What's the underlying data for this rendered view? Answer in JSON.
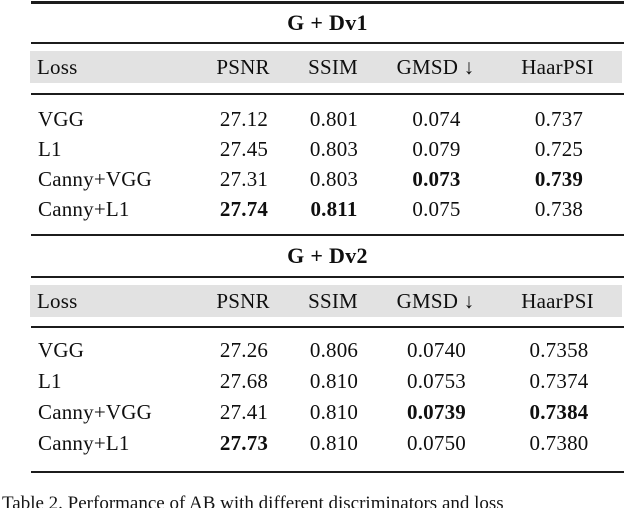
{
  "figure": {
    "type": "paper-results-table",
    "caption": "Table 2. Performance of AB with different discriminators and loss"
  },
  "colors": {
    "header_band": "#e2e2e2",
    "rule": "#1c1c1c",
    "text": "#0f0f0f",
    "background": "#ffffff"
  },
  "tables": [
    {
      "title": "G + Dv1",
      "headers": [
        "Loss",
        "PSNR",
        "SSIM",
        "GMSD ↓",
        "HaarPSI"
      ],
      "rows": [
        {
          "loss": "VGG",
          "psnr": "27.12",
          "ssim": "0.801",
          "gmsd": "0.074",
          "haarpsi": "0.737"
        },
        {
          "loss": "L1",
          "psnr": "27.45",
          "ssim": "0.803",
          "gmsd": "0.079",
          "haarpsi": "0.725"
        },
        {
          "loss": "Canny+VGG",
          "psnr": "27.31",
          "ssim": "0.803",
          "gmsd": "0.073",
          "haarpsi": "0.739"
        },
        {
          "loss": "Canny+L1",
          "psnr": "27.74",
          "ssim": "0.811",
          "gmsd": "0.075",
          "haarpsi": "0.738"
        }
      ],
      "bold_cells": [
        {
          "row": "Canny+VGG",
          "columns": [
            "gmsd",
            "haarpsi"
          ]
        },
        {
          "row": "Canny+L1",
          "columns": [
            "psnr",
            "ssim"
          ]
        }
      ]
    },
    {
      "title": "G + Dv2",
      "headers": [
        "Loss",
        "PSNR",
        "SSIM",
        "GMSD ↓",
        "HaarPSI"
      ],
      "rows": [
        {
          "loss": "VGG",
          "psnr": "27.26",
          "ssim": "0.806",
          "gmsd": "0.0740",
          "haarpsi": "0.7358"
        },
        {
          "loss": "L1",
          "psnr": "27.68",
          "ssim": "0.810",
          "gmsd": "0.0753",
          "haarpsi": "0.7374"
        },
        {
          "loss": "Canny+VGG",
          "psnr": "27.41",
          "ssim": "0.810",
          "gmsd": "0.0739",
          "haarpsi": "0.7384"
        },
        {
          "loss": "Canny+L1",
          "psnr": "27.73",
          "ssim": "0.810",
          "gmsd": "0.0750",
          "haarpsi": "0.7380"
        }
      ],
      "bold_cells": [
        {
          "row": "Canny+VGG",
          "columns": [
            "gmsd",
            "haarpsi"
          ]
        },
        {
          "row": "Canny+L1",
          "columns": [
            "psnr"
          ]
        }
      ]
    }
  ]
}
